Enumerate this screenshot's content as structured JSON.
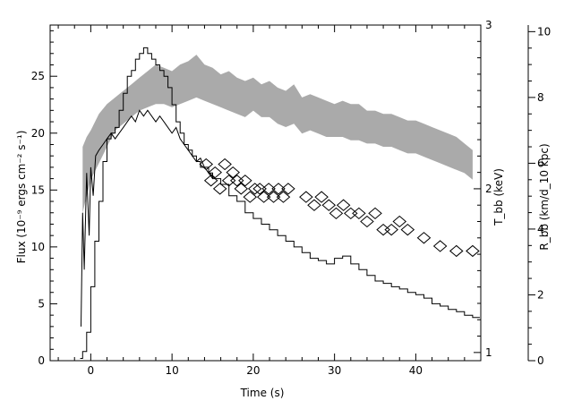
{
  "chart_data": {
    "type": "line",
    "title": "",
    "x_axis": {
      "label": "Time (s)",
      "range": [
        -5,
        48
      ],
      "ticks": [
        0,
        10,
        20,
        30,
        40
      ],
      "tick_labels": [
        "0",
        "10",
        "20",
        "30",
        "40"
      ]
    },
    "y_left_axis": {
      "label": "Flux (10⁻⁹ ergs cm⁻² s⁻¹)",
      "range": [
        0,
        29.5
      ],
      "ticks": [
        0,
        5,
        10,
        15,
        20,
        25
      ],
      "tick_labels": [
        "0",
        "5",
        "10",
        "15",
        "20",
        "25"
      ]
    },
    "y_right_inner_axis": {
      "label": "T_bb (keV)",
      "range": [
        0.95,
        3.0
      ],
      "ticks": [
        1,
        2,
        3
      ],
      "tick_labels": [
        "1",
        "2",
        "3"
      ]
    },
    "y_right_outer_axis": {
      "label": "R_bb (km/d_10 kpc)",
      "range": [
        0,
        10.2
      ],
      "ticks": [
        0,
        2,
        4,
        6,
        8,
        10
      ],
      "tick_labels": [
        "0",
        "2",
        "4",
        "6",
        "8",
        "10"
      ]
    },
    "series": [
      {
        "style": "histogram",
        "axis": "left",
        "color": "#000000",
        "x": [
          -1.3,
          -1.0,
          -0.5,
          0.0,
          0.5,
          1.0,
          1.5,
          2.0,
          2.5,
          3.0,
          3.5,
          4.0,
          4.5,
          5.0,
          5.5,
          6.0,
          6.5,
          7.0,
          7.5,
          8.0,
          8.5,
          9.0,
          9.5,
          10.0,
          10.5,
          11.0,
          11.5,
          12.0,
          12.5,
          13.0,
          13.5,
          14.0,
          14.5,
          15.0,
          16.0,
          17.0,
          18.0,
          19.0,
          20.0,
          21.0,
          22.0,
          23.0,
          24.0,
          25.0,
          26.0,
          27.0,
          28.0,
          29.0,
          30.0,
          31.0,
          32.0,
          33.0,
          34.0,
          35.0,
          36.0,
          37.0,
          38.0,
          39.0,
          40.0,
          41.0,
          42.0,
          43.0,
          44.0,
          45.0,
          46.0,
          47.0
        ],
        "values": [
          0.2,
          0.8,
          2.5,
          6.5,
          10.5,
          14.0,
          17.5,
          19.5,
          20.0,
          20.5,
          22.0,
          23.5,
          25.0,
          25.5,
          26.5,
          27.0,
          27.5,
          27.0,
          26.5,
          26.0,
          25.5,
          25.0,
          24.0,
          22.5,
          21.0,
          20.0,
          19.0,
          18.5,
          18.0,
          17.5,
          17.0,
          17.0,
          16.5,
          16.0,
          15.5,
          14.5,
          14.0,
          13.0,
          12.5,
          12.0,
          11.5,
          11.0,
          10.5,
          10.0,
          9.5,
          9.0,
          8.8,
          8.5,
          9.0,
          9.2,
          8.5,
          8.0,
          7.5,
          7.0,
          6.8,
          6.5,
          6.3,
          6.0,
          5.8,
          5.5,
          5.0,
          4.8,
          4.5,
          4.3,
          4.0,
          3.8
        ]
      },
      {
        "style": "line",
        "axis": "left",
        "color": "#000000",
        "x": [
          -1.2,
          -1.0,
          -0.8,
          -0.5,
          -0.2,
          0.0,
          0.3,
          0.6,
          1.0,
          1.5,
          2.0,
          2.5,
          3.0,
          3.5,
          4.0,
          4.5,
          5.0,
          5.5,
          6.0,
          6.5,
          7.0,
          7.5,
          8.0,
          8.5,
          9.0,
          9.5,
          10.0,
          10.5,
          11.0,
          11.5,
          12.0,
          12.5,
          13.0,
          13.5,
          14.0,
          14.5,
          15.0
        ],
        "values": [
          3.0,
          13.0,
          8.0,
          16.5,
          11.0,
          17.0,
          14.5,
          18.0,
          18.5,
          19.0,
          19.5,
          20.0,
          19.5,
          20.0,
          20.5,
          21.0,
          21.5,
          21.0,
          22.0,
          21.5,
          22.0,
          21.5,
          21.0,
          21.5,
          21.0,
          20.5,
          20.0,
          20.5,
          19.5,
          19.0,
          18.5,
          18.0,
          17.5,
          17.8,
          17.0,
          16.5,
          16.0
        ]
      },
      {
        "style": "band",
        "axis": "right_outer",
        "color": "#aaaaaa",
        "x": [
          -1.0,
          -0.5,
          0.0,
          1.0,
          2.0,
          3.0,
          4.0,
          5.0,
          6.0,
          7.0,
          8.0,
          9.0,
          10.0,
          11.0,
          12.0,
          13.0,
          14.0,
          15.0,
          16.0,
          17.0,
          18.0,
          19.0,
          20.0,
          21.0,
          22.0,
          23.0,
          24.0,
          25.0,
          26.0,
          27.0,
          28.0,
          29.0,
          30.0,
          31.0,
          32.0,
          33.0,
          34.0,
          35.0,
          36.0,
          37.0,
          38.0,
          39.0,
          40.0,
          41.0,
          42.0,
          43.0,
          44.0,
          45.0,
          46.0,
          47.0
        ],
        "upper": [
          6.5,
          6.8,
          7.0,
          7.5,
          7.8,
          8.0,
          8.2,
          8.4,
          8.6,
          8.8,
          9.0,
          8.9,
          8.8,
          9.0,
          9.1,
          9.3,
          9.0,
          8.9,
          8.7,
          8.8,
          8.6,
          8.5,
          8.6,
          8.4,
          8.5,
          8.3,
          8.2,
          8.4,
          8.0,
          8.1,
          8.0,
          7.9,
          7.8,
          7.9,
          7.8,
          7.8,
          7.6,
          7.6,
          7.5,
          7.5,
          7.4,
          7.3,
          7.3,
          7.2,
          7.1,
          7.0,
          6.9,
          6.8,
          6.6,
          6.4
        ],
        "lower": [
          4.5,
          5.0,
          5.5,
          6.0,
          6.5,
          7.0,
          7.2,
          7.4,
          7.6,
          7.7,
          7.8,
          7.8,
          7.7,
          7.8,
          7.9,
          8.0,
          7.9,
          7.8,
          7.7,
          7.6,
          7.5,
          7.4,
          7.6,
          7.4,
          7.4,
          7.2,
          7.1,
          7.2,
          6.9,
          7.0,
          6.9,
          6.8,
          6.8,
          6.8,
          6.7,
          6.7,
          6.6,
          6.6,
          6.5,
          6.5,
          6.4,
          6.3,
          6.3,
          6.2,
          6.1,
          6.0,
          5.9,
          5.8,
          5.7,
          5.5
        ]
      },
      {
        "style": "diamonds",
        "axis": "right_inner",
        "color": "#000000",
        "x": [
          14.2,
          14.8,
          15.3,
          15.9,
          16.5,
          17.0,
          17.5,
          18.0,
          18.5,
          19.0,
          19.6,
          20.2,
          20.8,
          21.3,
          21.9,
          22.5,
          23.1,
          23.7,
          24.3,
          26.5,
          27.5,
          28.4,
          29.3,
          30.2,
          31.1,
          32.0,
          33.0,
          34.0,
          35.0,
          36.0,
          37.0,
          38.0,
          39.0,
          41.0,
          43.0,
          45.0,
          47.0
        ],
        "values": [
          2.15,
          2.05,
          2.1,
          2.0,
          2.15,
          2.05,
          2.1,
          2.05,
          2.0,
          2.05,
          1.95,
          2.0,
          2.0,
          1.95,
          2.0,
          1.95,
          2.0,
          1.95,
          2.0,
          1.95,
          1.9,
          1.95,
          1.9,
          1.85,
          1.9,
          1.85,
          1.85,
          1.8,
          1.85,
          1.75,
          1.75,
          1.8,
          1.75,
          1.7,
          1.65,
          1.62,
          1.62
        ]
      }
    ]
  }
}
